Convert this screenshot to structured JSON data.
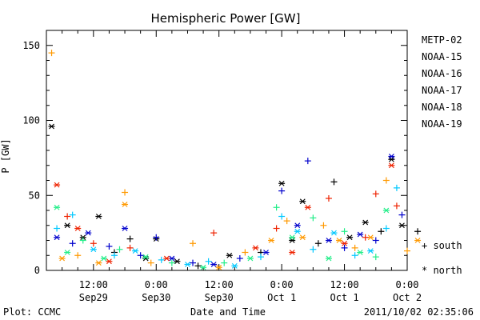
{
  "chart_data": {
    "type": "scatter",
    "title": "Hemispheric Power [GW]",
    "xlabel": "Date and Time",
    "ylabel": "P [GW]",
    "ylim": [
      0,
      160
    ],
    "xlim_hours": [
      -21,
      48
    ],
    "y_ticks": [
      0,
      50,
      100,
      150
    ],
    "x_ticks": [
      {
        "t": -12,
        "l1": "12:00",
        "l2": "Sep29"
      },
      {
        "t": 0,
        "l1": "0:00",
        "l2": "Sep30"
      },
      {
        "t": 12,
        "l1": "12:00",
        "l2": "Sep30"
      },
      {
        "t": 24,
        "l1": "0:00",
        "l2": "Oct 1"
      },
      {
        "t": 36,
        "l1": "12:00",
        "l2": "Oct 1"
      },
      {
        "t": 48,
        "l1": "0:00",
        "l2": "Oct 2"
      }
    ],
    "legend": {
      "placement": "right",
      "markers": {
        "south": "+",
        "north": "*"
      }
    },
    "series": [
      {
        "name": "METP-02",
        "color": "#000000",
        "points": [
          {
            "t": -20,
            "v": 96,
            "m": "*"
          },
          {
            "t": -17,
            "v": 30,
            "m": "*"
          },
          {
            "t": -14,
            "v": 22,
            "m": "*"
          },
          {
            "t": -11,
            "v": 36,
            "m": "*"
          },
          {
            "t": -8,
            "v": 12,
            "m": "+"
          },
          {
            "t": -5,
            "v": 21,
            "m": "+"
          },
          {
            "t": -2,
            "v": 8,
            "m": "*"
          },
          {
            "t": 0,
            "v": 21,
            "m": "*"
          },
          {
            "t": 4,
            "v": 6,
            "m": "*"
          },
          {
            "t": 8,
            "v": 3,
            "m": "+"
          },
          {
            "t": 14,
            "v": 10,
            "m": "*"
          },
          {
            "t": 20,
            "v": 12,
            "m": "+"
          },
          {
            "t": 24,
            "v": 58,
            "m": "*"
          },
          {
            "t": 26,
            "v": 20,
            "m": "*"
          },
          {
            "t": 28,
            "v": 46,
            "m": "*"
          },
          {
            "t": 31,
            "v": 18,
            "m": "+"
          },
          {
            "t": 34,
            "v": 59,
            "m": "+"
          },
          {
            "t": 37,
            "v": 22,
            "m": "*"
          },
          {
            "t": 40,
            "v": 32,
            "m": "*"
          },
          {
            "t": 43,
            "v": 26,
            "m": "+"
          },
          {
            "t": 45,
            "v": 74,
            "m": "*"
          },
          {
            "t": 47,
            "v": 30,
            "m": "*"
          },
          {
            "t": 50,
            "v": 26,
            "m": "+"
          }
        ]
      },
      {
        "name": "NOAA-15",
        "color": "#0000cc",
        "points": [
          {
            "t": -19,
            "v": 22,
            "m": "*"
          },
          {
            "t": -16,
            "v": 18,
            "m": "+"
          },
          {
            "t": -13,
            "v": 25,
            "m": "*"
          },
          {
            "t": -9,
            "v": 16,
            "m": "+"
          },
          {
            "t": -6,
            "v": 28,
            "m": "*"
          },
          {
            "t": -3,
            "v": 10,
            "m": "+"
          },
          {
            "t": 0,
            "v": 22,
            "m": "+"
          },
          {
            "t": 3,
            "v": 8,
            "m": "*"
          },
          {
            "t": 7,
            "v": 5,
            "m": "+"
          },
          {
            "t": 11,
            "v": 4,
            "m": "*"
          },
          {
            "t": 16,
            "v": 8,
            "m": "+"
          },
          {
            "t": 21,
            "v": 12,
            "m": "*"
          },
          {
            "t": 24,
            "v": 53,
            "m": "+"
          },
          {
            "t": 27,
            "v": 30,
            "m": "*"
          },
          {
            "t": 29,
            "v": 73,
            "m": "+"
          },
          {
            "t": 33,
            "v": 20,
            "m": "*"
          },
          {
            "t": 36,
            "v": 15,
            "m": "+"
          },
          {
            "t": 39,
            "v": 24,
            "m": "*"
          },
          {
            "t": 42,
            "v": 20,
            "m": "+"
          },
          {
            "t": 45,
            "v": 76,
            "m": "*"
          },
          {
            "t": 47,
            "v": 37,
            "m": "+"
          }
        ]
      },
      {
        "name": "NOAA-16",
        "color": "#00c8ff",
        "points": [
          {
            "t": -19,
            "v": 28,
            "m": "+"
          },
          {
            "t": -16,
            "v": 37,
            "m": "+"
          },
          {
            "t": -12,
            "v": 14,
            "m": "*"
          },
          {
            "t": -8,
            "v": 10,
            "m": "+"
          },
          {
            "t": -4,
            "v": 13,
            "m": "*"
          },
          {
            "t": 1,
            "v": 7,
            "m": "+"
          },
          {
            "t": 6,
            "v": 4,
            "m": "*"
          },
          {
            "t": 10,
            "v": 6,
            "m": "+"
          },
          {
            "t": 15,
            "v": 3,
            "m": "*"
          },
          {
            "t": 20,
            "v": 9,
            "m": "+"
          },
          {
            "t": 24,
            "v": 36,
            "m": "+"
          },
          {
            "t": 27,
            "v": 26,
            "m": "*"
          },
          {
            "t": 30,
            "v": 14,
            "m": "+"
          },
          {
            "t": 34,
            "v": 25,
            "m": "*"
          },
          {
            "t": 38,
            "v": 10,
            "m": "+"
          },
          {
            "t": 41,
            "v": 13,
            "m": "*"
          },
          {
            "t": 44,
            "v": 28,
            "m": "+"
          },
          {
            "t": 46,
            "v": 55,
            "m": "+"
          }
        ]
      },
      {
        "name": "NOAA-17",
        "color": "#22ee88",
        "points": [
          {
            "t": -19,
            "v": 42,
            "m": "*"
          },
          {
            "t": -17,
            "v": 12,
            "m": "*"
          },
          {
            "t": -14,
            "v": 20,
            "m": "+"
          },
          {
            "t": -10,
            "v": 8,
            "m": "*"
          },
          {
            "t": -7,
            "v": 14,
            "m": "+"
          },
          {
            "t": -2,
            "v": 9,
            "m": "*"
          },
          {
            "t": 3,
            "v": 5,
            "m": "+"
          },
          {
            "t": 9,
            "v": 2,
            "m": "*"
          },
          {
            "t": 13,
            "v": 5,
            "m": "+"
          },
          {
            "t": 18,
            "v": 8,
            "m": "*"
          },
          {
            "t": 23,
            "v": 42,
            "m": "+"
          },
          {
            "t": 26,
            "v": 22,
            "m": "*"
          },
          {
            "t": 30,
            "v": 35,
            "m": "+"
          },
          {
            "t": 33,
            "v": 8,
            "m": "*"
          },
          {
            "t": 36,
            "v": 26,
            "m": "+"
          },
          {
            "t": 39,
            "v": 12,
            "m": "*"
          },
          {
            "t": 42,
            "v": 9,
            "m": "+"
          },
          {
            "t": 44,
            "v": 40,
            "m": "*"
          }
        ]
      },
      {
        "name": "NOAA-18",
        "color": "#ff9900",
        "points": [
          {
            "t": -20,
            "v": 145,
            "m": "+"
          },
          {
            "t": -18,
            "v": 8,
            "m": "*"
          },
          {
            "t": -15,
            "v": 10,
            "m": "+"
          },
          {
            "t": -11,
            "v": 5,
            "m": "*"
          },
          {
            "t": -6,
            "v": 52,
            "m": "+"
          },
          {
            "t": -6,
            "v": 44,
            "m": "*"
          },
          {
            "t": -1,
            "v": 5,
            "m": "+"
          },
          {
            "t": 7,
            "v": 18,
            "m": "+"
          },
          {
            "t": 12,
            "v": 2,
            "m": "*"
          },
          {
            "t": 17,
            "v": 12,
            "m": "+"
          },
          {
            "t": 22,
            "v": 20,
            "m": "*"
          },
          {
            "t": 25,
            "v": 33,
            "m": "+"
          },
          {
            "t": 28,
            "v": 22,
            "m": "*"
          },
          {
            "t": 32,
            "v": 30,
            "m": "+"
          },
          {
            "t": 35,
            "v": 20,
            "m": "*"
          },
          {
            "t": 38,
            "v": 15,
            "m": "+"
          },
          {
            "t": 41,
            "v": 22,
            "m": "*"
          },
          {
            "t": 44,
            "v": 60,
            "m": "+"
          },
          {
            "t": 48,
            "v": 13,
            "m": "+"
          },
          {
            "t": 50,
            "v": 20,
            "m": "*"
          }
        ]
      },
      {
        "name": "NOAA-19",
        "color": "#ee2200",
        "points": [
          {
            "t": -19,
            "v": 57,
            "m": "*"
          },
          {
            "t": -17,
            "v": 36,
            "m": "+"
          },
          {
            "t": -15,
            "v": 28,
            "m": "*"
          },
          {
            "t": -12,
            "v": 18,
            "m": "+"
          },
          {
            "t": -9,
            "v": 6,
            "m": "*"
          },
          {
            "t": -5,
            "v": 15,
            "m": "+"
          },
          {
            "t": 2,
            "v": 8,
            "m": "*"
          },
          {
            "t": 11,
            "v": 25,
            "m": "+"
          },
          {
            "t": 19,
            "v": 15,
            "m": "*"
          },
          {
            "t": 23,
            "v": 28,
            "m": "+"
          },
          {
            "t": 26,
            "v": 12,
            "m": "*"
          },
          {
            "t": 29,
            "v": 42,
            "m": "*"
          },
          {
            "t": 33,
            "v": 48,
            "m": "+"
          },
          {
            "t": 36,
            "v": 18,
            "m": "*"
          },
          {
            "t": 40,
            "v": 22,
            "m": "+"
          },
          {
            "t": 42,
            "v": 51,
            "m": "+"
          },
          {
            "t": 45,
            "v": 70,
            "m": "*"
          },
          {
            "t": 46,
            "v": 43,
            "m": "+"
          }
        ]
      }
    ]
  },
  "legend_labels": {
    "south": "+ south",
    "north": "* north"
  },
  "footer": {
    "left": "Plot: CCMC",
    "center": "Date and Time",
    "right": "2011/10/02 02:35:06"
  }
}
